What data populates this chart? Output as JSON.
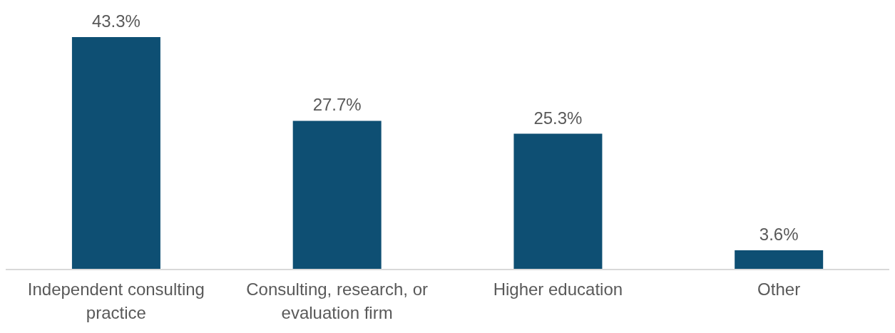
{
  "chart_data": {
    "type": "bar",
    "categories": [
      "Independent consulting practice",
      "Consulting, research, or evaluation firm",
      "Higher education",
      "Other"
    ],
    "values": [
      43.3,
      27.7,
      25.3,
      3.6
    ],
    "value_labels": [
      "43.3%",
      "27.7%",
      "25.3%",
      "3.6%"
    ],
    "color": "#0e4f73",
    "grid": false,
    "legend": false
  }
}
